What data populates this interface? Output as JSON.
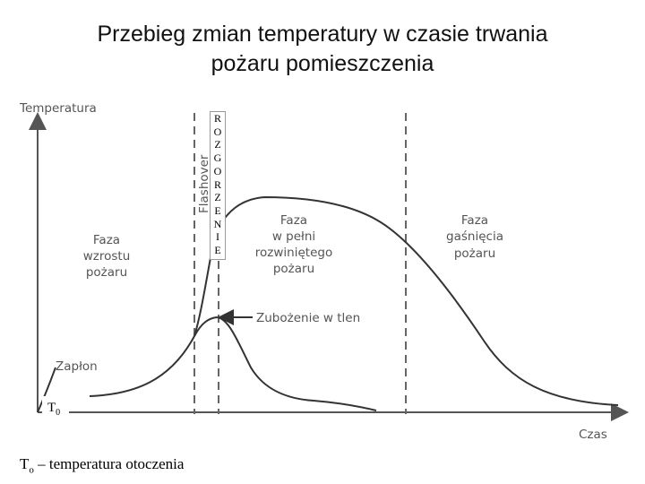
{
  "title": {
    "line1": "Przebieg zmian temperatury w czasie trwania",
    "line2": "pożaru pomieszczenia"
  },
  "axes": {
    "y_label": "Temperatura",
    "x_label": "Czas"
  },
  "labels": {
    "flashover": "Flashover",
    "growth_phase": [
      "Faza",
      "wzrostu",
      "pożaru"
    ],
    "developed_phase": [
      "Faza",
      "w pełni",
      "rozwiniętego",
      "pożaru"
    ],
    "decay_phase": [
      "Faza",
      "gaśnięcia",
      "pożaru"
    ],
    "oxygen_depletion": "Zubożenie w tlen",
    "ignition": "Zapłon"
  },
  "overlays": {
    "rozgorzenie": [
      "R",
      "O",
      "Z",
      "G",
      "O",
      "R",
      "Z",
      "E",
      "N",
      "I",
      "E"
    ],
    "t0": "T",
    "t0_sub": "0",
    "ambient_note": "T",
    "ambient_note_sub": "o",
    "ambient_note_text": " – temperatura otoczenia"
  },
  "colors": {
    "curve": "#333333",
    "axis": "#555555",
    "dashed": "#666666"
  }
}
